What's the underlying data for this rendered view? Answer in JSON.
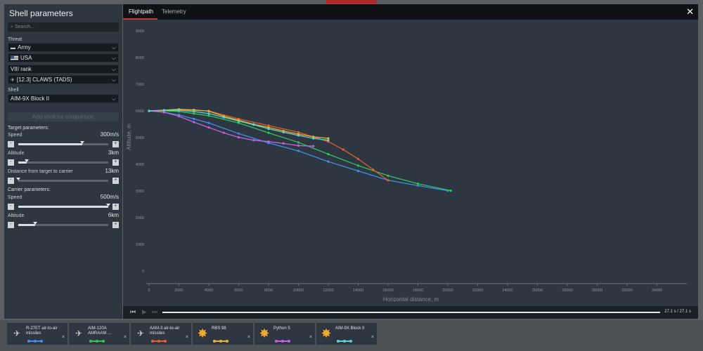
{
  "left_panel": {
    "title": "Shell parameters",
    "search_placeholder": "Search...",
    "threat_label": "Threat",
    "threat_type": "Army",
    "country": "USA",
    "rank": "VIII rank",
    "vehicle": "[12.3] CLAWS (TADS)",
    "shell_label": "Shell",
    "shell": "AIM-9X Block II",
    "add_button": "Add shell for comparison",
    "target_section": "Target parameters:",
    "carrier_section": "Carrier parameters:",
    "params": {
      "target_speed": {
        "label": "Speed",
        "value": "300m/s",
        "level": 0.71
      },
      "target_altitude": {
        "label": "Altitude",
        "value": "3km",
        "level": 0.09
      },
      "target_distance": {
        "label": "Distance from target to carrier",
        "value": "13km",
        "level": 0.0
      },
      "carrier_speed": {
        "label": "Speed",
        "value": "500m/s",
        "level": 1.0
      },
      "carrier_altitude": {
        "label": "Altitude",
        "value": "6km",
        "level": 0.19
      }
    },
    "minus": "-",
    "plus": "+"
  },
  "tabs": [
    "Flightpath",
    "Telemetry"
  ],
  "close_icon": "close-icon",
  "player": {
    "time": "27.1 s  /  27.1 s",
    "progress": 1.0
  },
  "chart_data": {
    "type": "line",
    "xlabel": "Horizontal distance, m",
    "ylabel": "Altitude, m",
    "xlim": [
      0,
      36000
    ],
    "ylim": [
      0,
      9000
    ],
    "xticks": [
      0,
      2000,
      4000,
      6000,
      8000,
      10000,
      12000,
      14000,
      16000,
      18000,
      20000,
      22000,
      24000,
      26000,
      28000,
      30000,
      32000,
      34000
    ],
    "yticks": [
      0,
      1000,
      2000,
      3000,
      4000,
      5000,
      6000,
      7000,
      8000,
      9000
    ],
    "grid": false,
    "series": [
      {
        "color": "#3f8fe6",
        "x": [
          0,
          1000,
          2000,
          3000,
          4000,
          6000,
          8000,
          10000,
          12000,
          14000,
          16000,
          18000,
          20000
        ],
        "y": [
          6000,
          5950,
          5850,
          5700,
          5550,
          5150,
          4800,
          4500,
          4100,
          3750,
          3400,
          3200,
          3010
        ]
      },
      {
        "color": "#2fc35a",
        "x": [
          0,
          1000,
          2000,
          3000,
          4000,
          6000,
          8000,
          10000,
          12000,
          14000,
          16000,
          18000,
          20200
        ],
        "y": [
          6000,
          6000,
          5980,
          5900,
          5820,
          5550,
          5180,
          4820,
          4380,
          3950,
          3570,
          3270,
          3010
        ]
      },
      {
        "color": "#e65c2a",
        "x": [
          0,
          1000,
          2000,
          3000,
          4000,
          6000,
          8000,
          10000,
          12000,
          13000,
          14000,
          15000,
          16000
        ],
        "y": [
          6000,
          6010,
          6030,
          6020,
          6000,
          5700,
          5450,
          5200,
          4850,
          4550,
          4200,
          3800,
          3400
        ]
      },
      {
        "color": "#e8b430",
        "x": [
          0,
          1000,
          2000,
          3000,
          4000,
          5000,
          6000,
          7000,
          8000,
          9000,
          10000,
          11000,
          12000
        ],
        "y": [
          6000,
          6030,
          6060,
          6040,
          5990,
          5800,
          5650,
          5500,
          5380,
          5250,
          5130,
          5030,
          4970
        ]
      },
      {
        "color": "#c264e0",
        "x": [
          0,
          1000,
          2000,
          3000,
          4000,
          5000,
          6000,
          7000,
          8000,
          9000,
          10000,
          11000
        ],
        "y": [
          6000,
          5950,
          5800,
          5580,
          5380,
          5180,
          5010,
          4900,
          4850,
          4780,
          4700,
          4680
        ]
      },
      {
        "color": "#59d3d6",
        "x": [
          0,
          1000,
          2000,
          3000,
          4000,
          5000,
          6000,
          7000,
          8000,
          9000,
          10000,
          11000,
          12000
        ],
        "y": [
          6000,
          6020,
          6020,
          5980,
          5900,
          5760,
          5620,
          5480,
          5330,
          5200,
          5080,
          4970,
          4900
        ]
      }
    ]
  },
  "shells": [
    {
      "name": "R-27ET air-to-air missiles",
      "icon": "aircraft-icon",
      "color": "#3f8fe6"
    },
    {
      "name": "AIM-120A AMRAAM ...",
      "icon": "aircraft-icon",
      "color": "#2fc35a"
    },
    {
      "name": "AAM-3 air-to-air missiles",
      "icon": "aircraft-icon",
      "color": "#e65c2a"
    },
    {
      "name": "RBS 98",
      "icon": "star-icon",
      "color": "#e8b430"
    },
    {
      "name": "Python 5",
      "icon": "star-icon",
      "color": "#c264e0"
    },
    {
      "name": "AIM-9X Block II",
      "icon": "star-icon",
      "color": "#59d3d6"
    }
  ],
  "remove_label": "×"
}
